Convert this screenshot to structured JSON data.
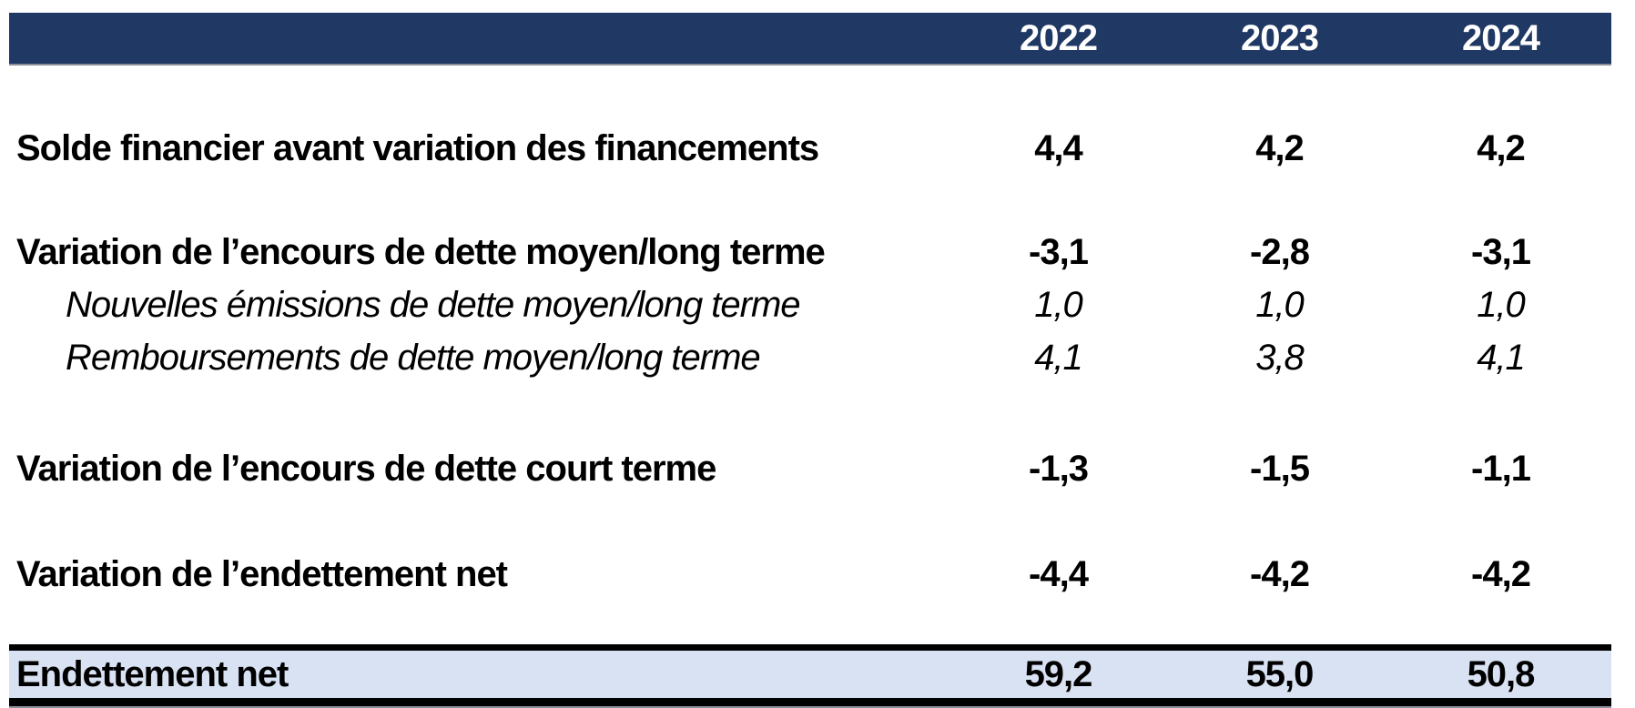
{
  "table": {
    "header": {
      "years": [
        "2022",
        "2023",
        "2024"
      ]
    },
    "rows": [
      {
        "label": "Solde financier avant variation des financements",
        "style": "bold",
        "values": [
          "4,4",
          "4,2",
          "4,2"
        ]
      },
      {
        "label": "Variation de l’encours de dette moyen/long terme",
        "style": "bold",
        "values": [
          "-3,1",
          "-2,8",
          "-3,1"
        ]
      },
      {
        "label": "Nouvelles émissions de dette moyen/long terme",
        "style": "italic",
        "values": [
          "1,0",
          "1,0",
          "1,0"
        ]
      },
      {
        "label": "Remboursements de dette moyen/long terme",
        "style": "italic",
        "values": [
          "4,1",
          "3,8",
          "4,1"
        ]
      },
      {
        "label": "Variation de l’encours de dette court terme",
        "style": "bold",
        "values": [
          "-1,3",
          "-1,5",
          "-1,1"
        ]
      },
      {
        "label": "Variation de l’endettement net",
        "style": "bold",
        "values": [
          "-4,4",
          "-4,2",
          "-4,2"
        ]
      }
    ],
    "footer": {
      "label": "Endettement net",
      "values": [
        "59,2",
        "55,0",
        "50,8"
      ]
    }
  },
  "colors": {
    "header_bg": "#1F3864",
    "header_text": "#FFFFFF",
    "footer_bg": "#D9E2F3",
    "border_black": "#000000",
    "grid_gray": "#8A8F99"
  },
  "chart_data": {
    "type": "table",
    "title": "",
    "columns": [
      "",
      "2022",
      "2023",
      "2024"
    ],
    "rows": [
      [
        "Solde financier avant variation des financements",
        "4,4",
        "4,2",
        "4,2"
      ],
      [
        "Variation de l’encours de dette moyen/long terme",
        "-3,1",
        "-2,8",
        "-3,1"
      ],
      [
        "Nouvelles émissions de dette moyen/long terme",
        "1,0",
        "1,0",
        "1,0"
      ],
      [
        "Remboursements de dette moyen/long terme",
        "4,1",
        "3,8",
        "4,1"
      ],
      [
        "Variation de l’encours de dette court terme",
        "-1,3",
        "-1,5",
        "-1,1"
      ],
      [
        "Variation de l’endettement net",
        "-4,4",
        "-4,2",
        "-4,2"
      ],
      [
        "Endettement net",
        "59,2",
        "55,0",
        "50,8"
      ]
    ]
  }
}
